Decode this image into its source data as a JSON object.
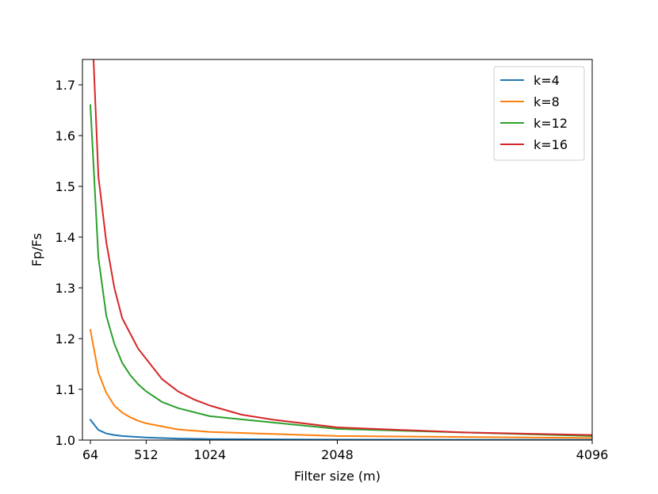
{
  "chart_data": {
    "type": "line",
    "title": "",
    "xlabel": "Filter size (m)",
    "ylabel": "Fp/Fs",
    "xlim": [
      0,
      4096
    ],
    "ylim": [
      1.0,
      1.75
    ],
    "xticks": [
      64,
      512,
      1024,
      2048,
      4096
    ],
    "xtick_labels": [
      "64",
      "512",
      "1024",
      "2048",
      "4096"
    ],
    "yticks": [
      1.0,
      1.1,
      1.2,
      1.3,
      1.4,
      1.5,
      1.6,
      1.7
    ],
    "ytick_labels": [
      "1.0",
      "1.1",
      "1.2",
      "1.3",
      "1.4",
      "1.5",
      "1.6",
      "1.7"
    ],
    "grid": false,
    "legend_position": "top-right",
    "series": [
      {
        "name": "k=4",
        "color": "#1f77b4",
        "x": [
          64,
          128,
          192,
          256,
          320,
          384,
          512,
          768,
          1024,
          2048,
          4096
        ],
        "y": [
          1.04,
          1.02,
          1.013,
          1.01,
          1.008,
          1.007,
          1.005,
          1.003,
          1.002,
          1.001,
          1.0005
        ]
      },
      {
        "name": "k=8",
        "color": "#ff7f0e",
        "x": [
          64,
          128,
          192,
          256,
          320,
          384,
          448,
          512,
          768,
          1024,
          2048,
          4096
        ],
        "y": [
          1.217,
          1.133,
          1.093,
          1.068,
          1.054,
          1.045,
          1.038,
          1.033,
          1.021,
          1.016,
          1.008,
          1.004
        ]
      },
      {
        "name": "k=12",
        "color": "#2ca02c",
        "x": [
          64,
          128,
          192,
          256,
          320,
          384,
          448,
          512,
          640,
          768,
          1024,
          2048,
          4096
        ],
        "y": [
          1.66,
          1.36,
          1.245,
          1.19,
          1.152,
          1.128,
          1.11,
          1.096,
          1.075,
          1.063,
          1.047,
          1.022,
          1.008
        ]
      },
      {
        "name": "k=16",
        "color": "#d62728",
        "x": [
          89,
          128,
          192,
          256,
          320,
          384,
          448,
          512,
          640,
          768,
          896,
          1024,
          1280,
          1536,
          2048,
          3072,
          4096
        ],
        "y": [
          1.75,
          1.52,
          1.39,
          1.3,
          1.24,
          1.21,
          1.18,
          1.16,
          1.12,
          1.096,
          1.08,
          1.068,
          1.05,
          1.04,
          1.025,
          1.015,
          1.01
        ]
      }
    ]
  }
}
